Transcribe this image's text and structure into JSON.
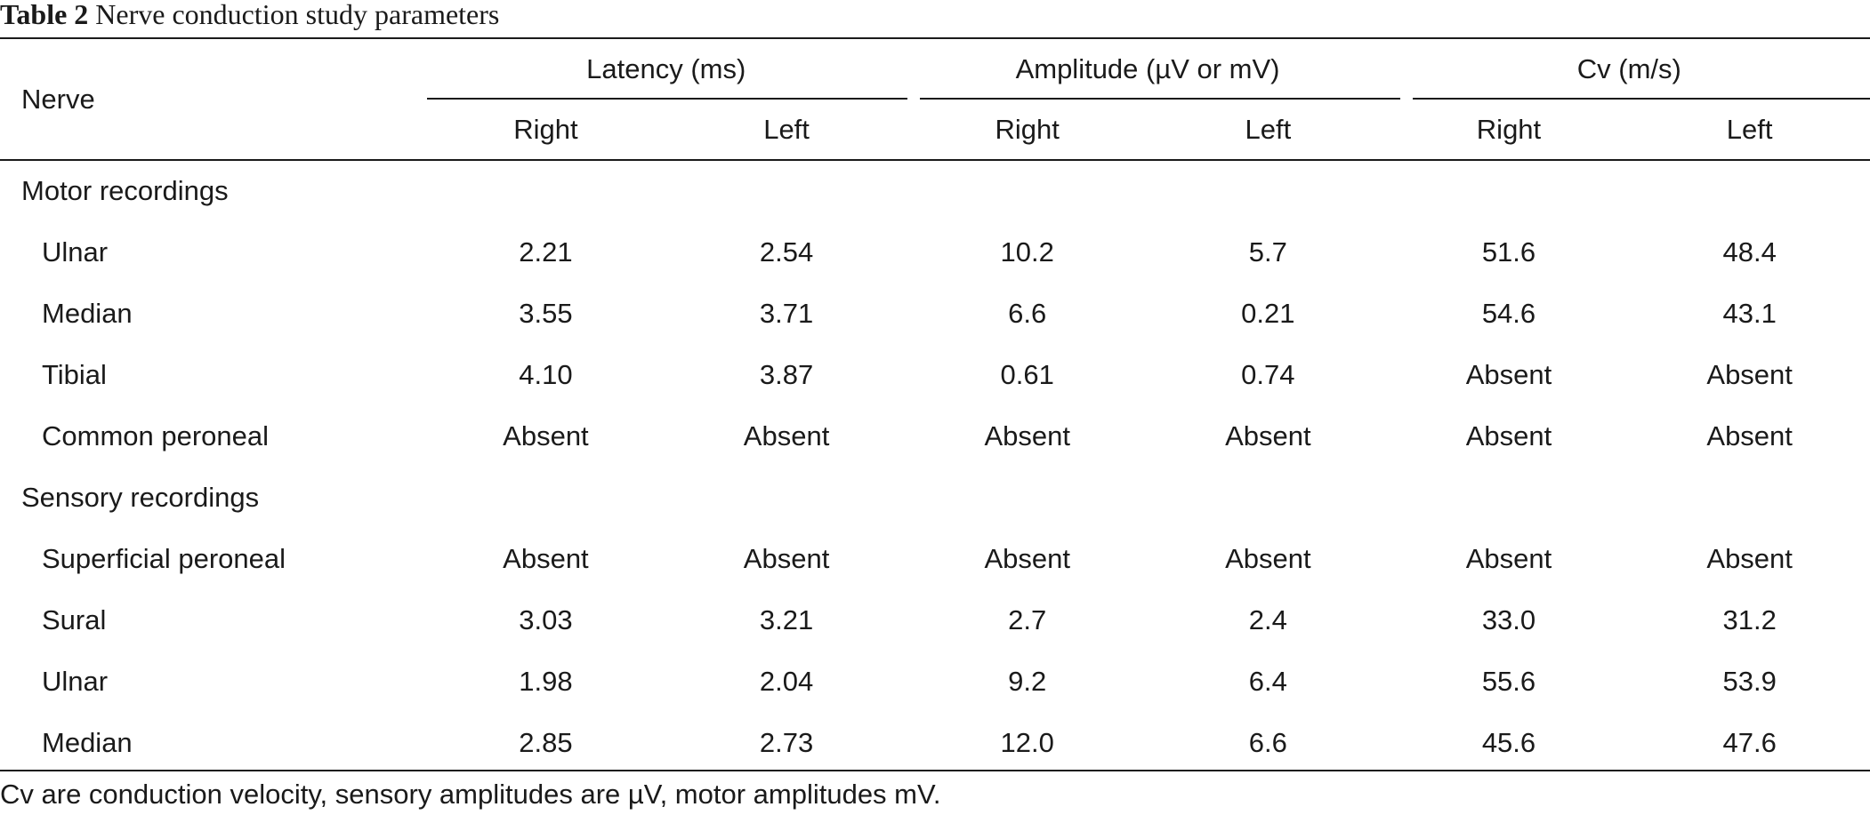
{
  "caption": {
    "label": "Table 2",
    "title": "Nerve conduction study parameters"
  },
  "table": {
    "nerve_header": "Nerve",
    "groups": [
      {
        "label": "Latency (ms)",
        "right": "Right",
        "left": "Left"
      },
      {
        "label": "Amplitude (µV or mV)",
        "right": "Right",
        "left": "Left"
      },
      {
        "label": "Cv (m/s)",
        "right": "Right",
        "left": "Left"
      }
    ],
    "sections": [
      {
        "label": "Motor recordings",
        "rows": [
          {
            "nerve": "Ulnar",
            "values": [
              "2.21",
              "2.54",
              "10.2",
              "5.7",
              "51.6",
              "48.4"
            ]
          },
          {
            "nerve": "Median",
            "values": [
              "3.55",
              "3.71",
              "6.6",
              "0.21",
              "54.6",
              "43.1"
            ]
          },
          {
            "nerve": "Tibial",
            "values": [
              "4.10",
              "3.87",
              "0.61",
              "0.74",
              "Absent",
              "Absent"
            ]
          },
          {
            "nerve": "Common peroneal",
            "values": [
              "Absent",
              "Absent",
              "Absent",
              "Absent",
              "Absent",
              "Absent"
            ]
          }
        ]
      },
      {
        "label": "Sensory recordings",
        "rows": [
          {
            "nerve": "Superficial peroneal",
            "values": [
              "Absent",
              "Absent",
              "Absent",
              "Absent",
              "Absent",
              "Absent"
            ]
          },
          {
            "nerve": "Sural",
            "values": [
              "3.03",
              "3.21",
              "2.7",
              "2.4",
              "33.0",
              "31.2"
            ]
          },
          {
            "nerve": "Ulnar",
            "values": [
              "1.98",
              "2.04",
              "9.2",
              "6.4",
              "55.6",
              "53.9"
            ]
          },
          {
            "nerve": "Median",
            "values": [
              "2.85",
              "2.73",
              "12.0",
              "6.6",
              "45.6",
              "47.6"
            ]
          }
        ]
      }
    ]
  },
  "footnote": "Cv are conduction velocity, sensory amplitudes are µV, motor amplitudes mV."
}
